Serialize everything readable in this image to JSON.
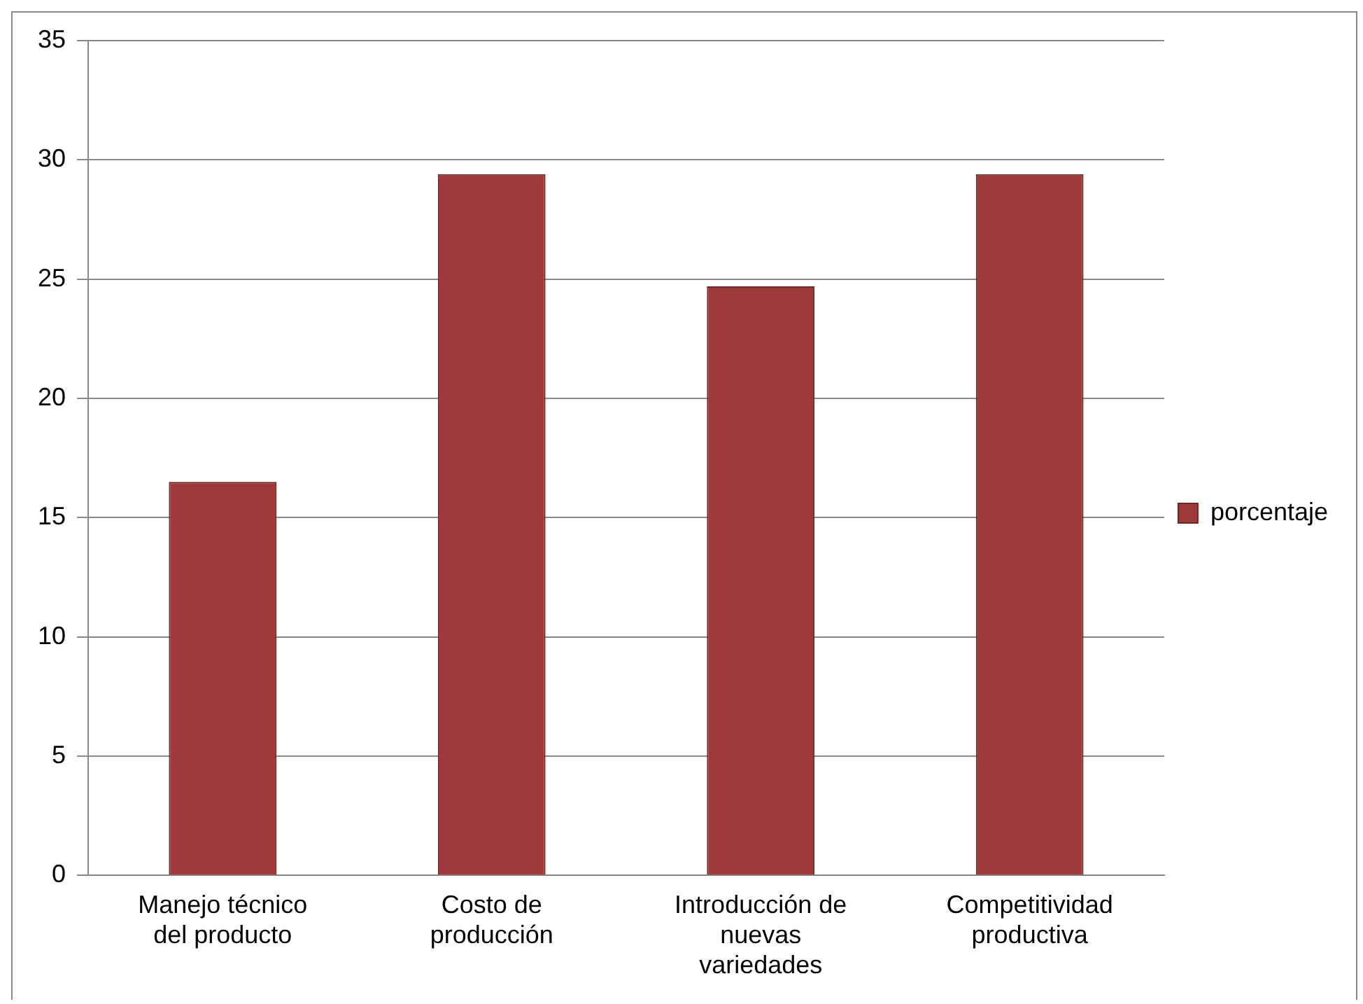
{
  "chart_data": {
    "type": "bar",
    "categories": [
      "Manejo técnico del producto",
      "Costo de producción",
      "Introducción de nuevas variedades",
      "Competitividad productiva"
    ],
    "series": [
      {
        "name": "porcentaje",
        "color": "#9e3a3a",
        "values": [
          16.5,
          29.4,
          24.7,
          29.4
        ]
      }
    ],
    "ylim": [
      0,
      35
    ],
    "yticks": [
      0,
      5,
      10,
      15,
      20,
      25,
      30,
      35
    ],
    "grid": "y",
    "legend": "right"
  }
}
